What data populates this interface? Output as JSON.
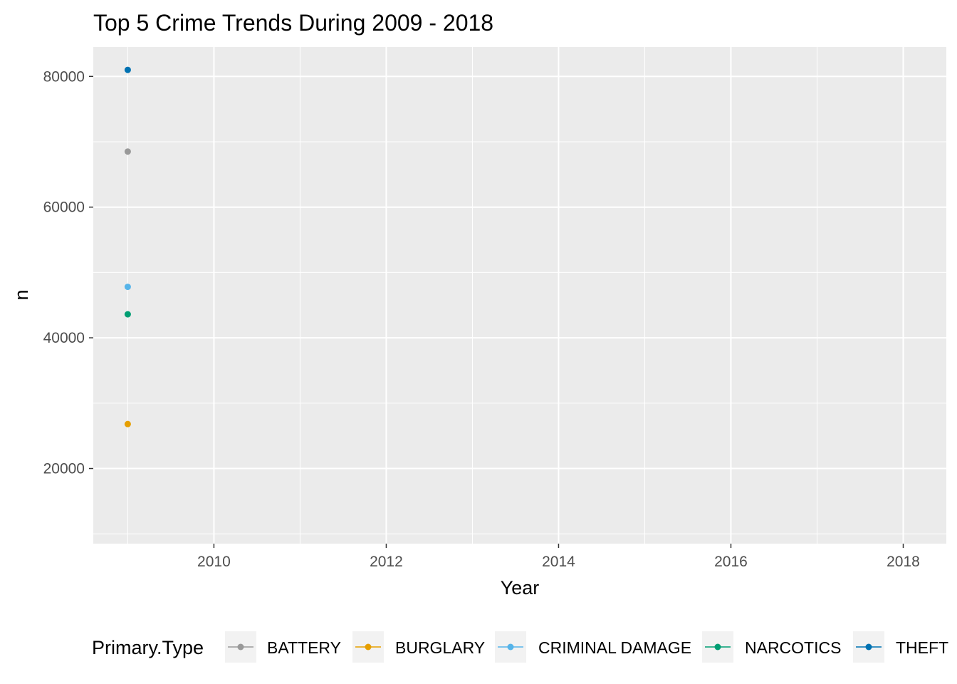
{
  "chart_data": {
    "type": "line",
    "title": "Top 5 Crime Trends During 2009 - 2018",
    "xlabel": "Year",
    "ylabel": "n",
    "xlim": [
      2008.6,
      2018.5
    ],
    "ylim": [
      8500,
      84500
    ],
    "x_ticks": [
      2010,
      2012,
      2014,
      2016,
      2018
    ],
    "x_tick_labels": [
      "2010",
      "2012",
      "2014",
      "2016",
      "2018"
    ],
    "y_ticks": [
      20000,
      40000,
      60000,
      80000
    ],
    "y_tick_labels": [
      "20000",
      "40000",
      "60000",
      "80000"
    ],
    "grid": true,
    "background": "#ebebeb",
    "legend": {
      "title": "Primary.Type",
      "position": "bottom"
    },
    "series": [
      {
        "name": "BATTERY",
        "color": "#999999",
        "x": [
          2009
        ],
        "values": [
          68500
        ]
      },
      {
        "name": "BURGLARY",
        "color": "#E69F00",
        "x": [
          2009
        ],
        "values": [
          26800
        ]
      },
      {
        "name": "CRIMINAL DAMAGE",
        "color": "#56B4E9",
        "x": [
          2009
        ],
        "values": [
          47800
        ]
      },
      {
        "name": "NARCOTICS",
        "color": "#009E73",
        "x": [
          2009
        ],
        "values": [
          43600
        ]
      },
      {
        "name": "THEFT",
        "color": "#0072B2",
        "x": [
          2009
        ],
        "values": [
          81000
        ]
      }
    ]
  }
}
